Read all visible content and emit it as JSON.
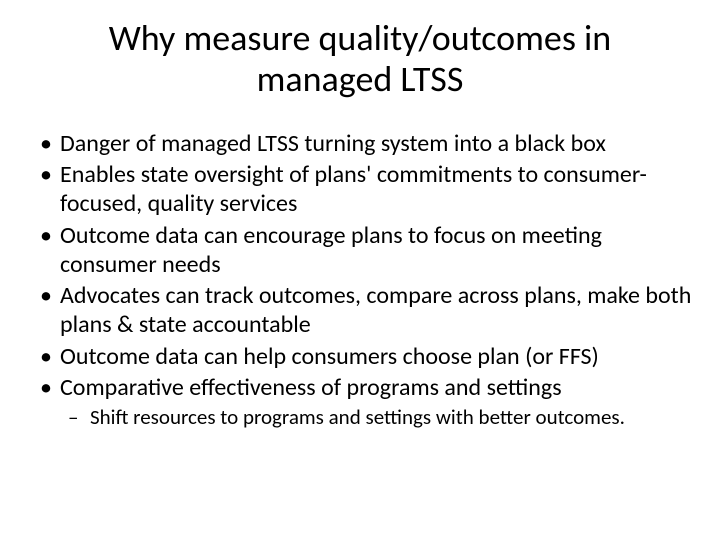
{
  "slide": {
    "title": "Why measure quality/outcomes in managed LTSS",
    "bullets": [
      {
        "text": "Danger of managed LTSS turning system into a black box"
      },
      {
        "text": "Enables state oversight of plans' commitments to consumer-focused, quality services"
      },
      {
        "text": "Outcome data can encourage plans to focus on meeting consumer needs"
      },
      {
        "text": "Advocates can track outcomes, compare across plans, make both plans & state accountable"
      },
      {
        "text": "Outcome data can help consumers choose plan (or FFS)"
      },
      {
        "text": "Comparative effectiveness of programs and settings",
        "sub": [
          {
            "text": "Shift resources to programs and settings with better outcomes."
          }
        ]
      }
    ],
    "style": {
      "background_color": "#ffffff",
      "text_color": "#000000",
      "font_family": "Calibri",
      "title_fontsize": 36,
      "title_weight": 400,
      "bullet_fontsize": 24,
      "sub_bullet_fontsize": 21,
      "bullet_marker": "•",
      "sub_bullet_marker": "–"
    }
  }
}
